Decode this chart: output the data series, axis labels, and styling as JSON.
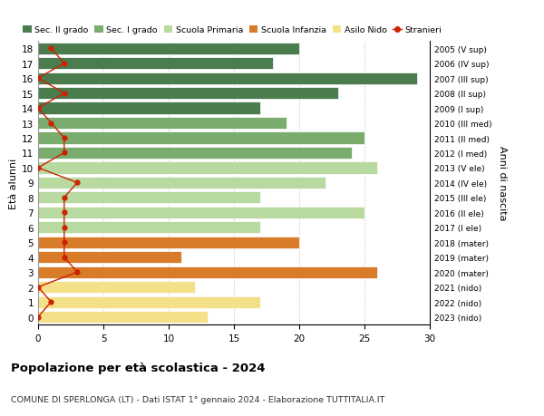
{
  "ages": [
    18,
    17,
    16,
    15,
    14,
    13,
    12,
    11,
    10,
    9,
    8,
    7,
    6,
    5,
    4,
    3,
    2,
    1,
    0
  ],
  "right_labels": [
    "2005 (V sup)",
    "2006 (IV sup)",
    "2007 (III sup)",
    "2008 (II sup)",
    "2009 (I sup)",
    "2010 (III med)",
    "2011 (II med)",
    "2012 (I med)",
    "2013 (V ele)",
    "2014 (IV ele)",
    "2015 (III ele)",
    "2016 (II ele)",
    "2017 (I ele)",
    "2018 (mater)",
    "2019 (mater)",
    "2020 (mater)",
    "2021 (nido)",
    "2022 (nido)",
    "2023 (nido)"
  ],
  "bar_values": [
    20,
    18,
    29,
    23,
    17,
    19,
    25,
    24,
    26,
    22,
    17,
    25,
    17,
    20,
    11,
    26,
    12,
    17,
    13
  ],
  "bar_colors": [
    "#4a7c4e",
    "#4a7c4e",
    "#4a7c4e",
    "#4a7c4e",
    "#4a7c4e",
    "#7aac6e",
    "#7aac6e",
    "#7aac6e",
    "#b8d9a0",
    "#b8d9a0",
    "#b8d9a0",
    "#b8d9a0",
    "#b8d9a0",
    "#d97c2a",
    "#d97c2a",
    "#d97c2a",
    "#f5e08a",
    "#f5e08a",
    "#f5e08a"
  ],
  "stranieri_values": [
    1,
    2,
    0,
    2,
    0,
    1,
    2,
    2,
    0,
    3,
    2,
    2,
    2,
    2,
    2,
    3,
    0,
    1,
    0
  ],
  "legend_labels": [
    "Sec. II grado",
    "Sec. I grado",
    "Scuola Primaria",
    "Scuola Infanzia",
    "Asilo Nido",
    "Stranieri"
  ],
  "legend_colors": [
    "#4a7c4e",
    "#7aac6e",
    "#b8d9a0",
    "#d97c2a",
    "#f5e08a",
    "#cc2200"
  ],
  "ylabel": "Età alunni",
  "ylabel_right": "Anni di nascita",
  "title": "Popolazione per età scolastica - 2024",
  "subtitle": "COMUNE DI SPERLONGA (LT) - Dati ISTAT 1° gennaio 2024 - Elaborazione TUTTITALIA.IT",
  "xlim": [
    0,
    30
  ],
  "xticks": [
    0,
    5,
    10,
    15,
    20,
    25,
    30
  ],
  "background_color": "#ffffff",
  "grid_color": "#cccccc"
}
